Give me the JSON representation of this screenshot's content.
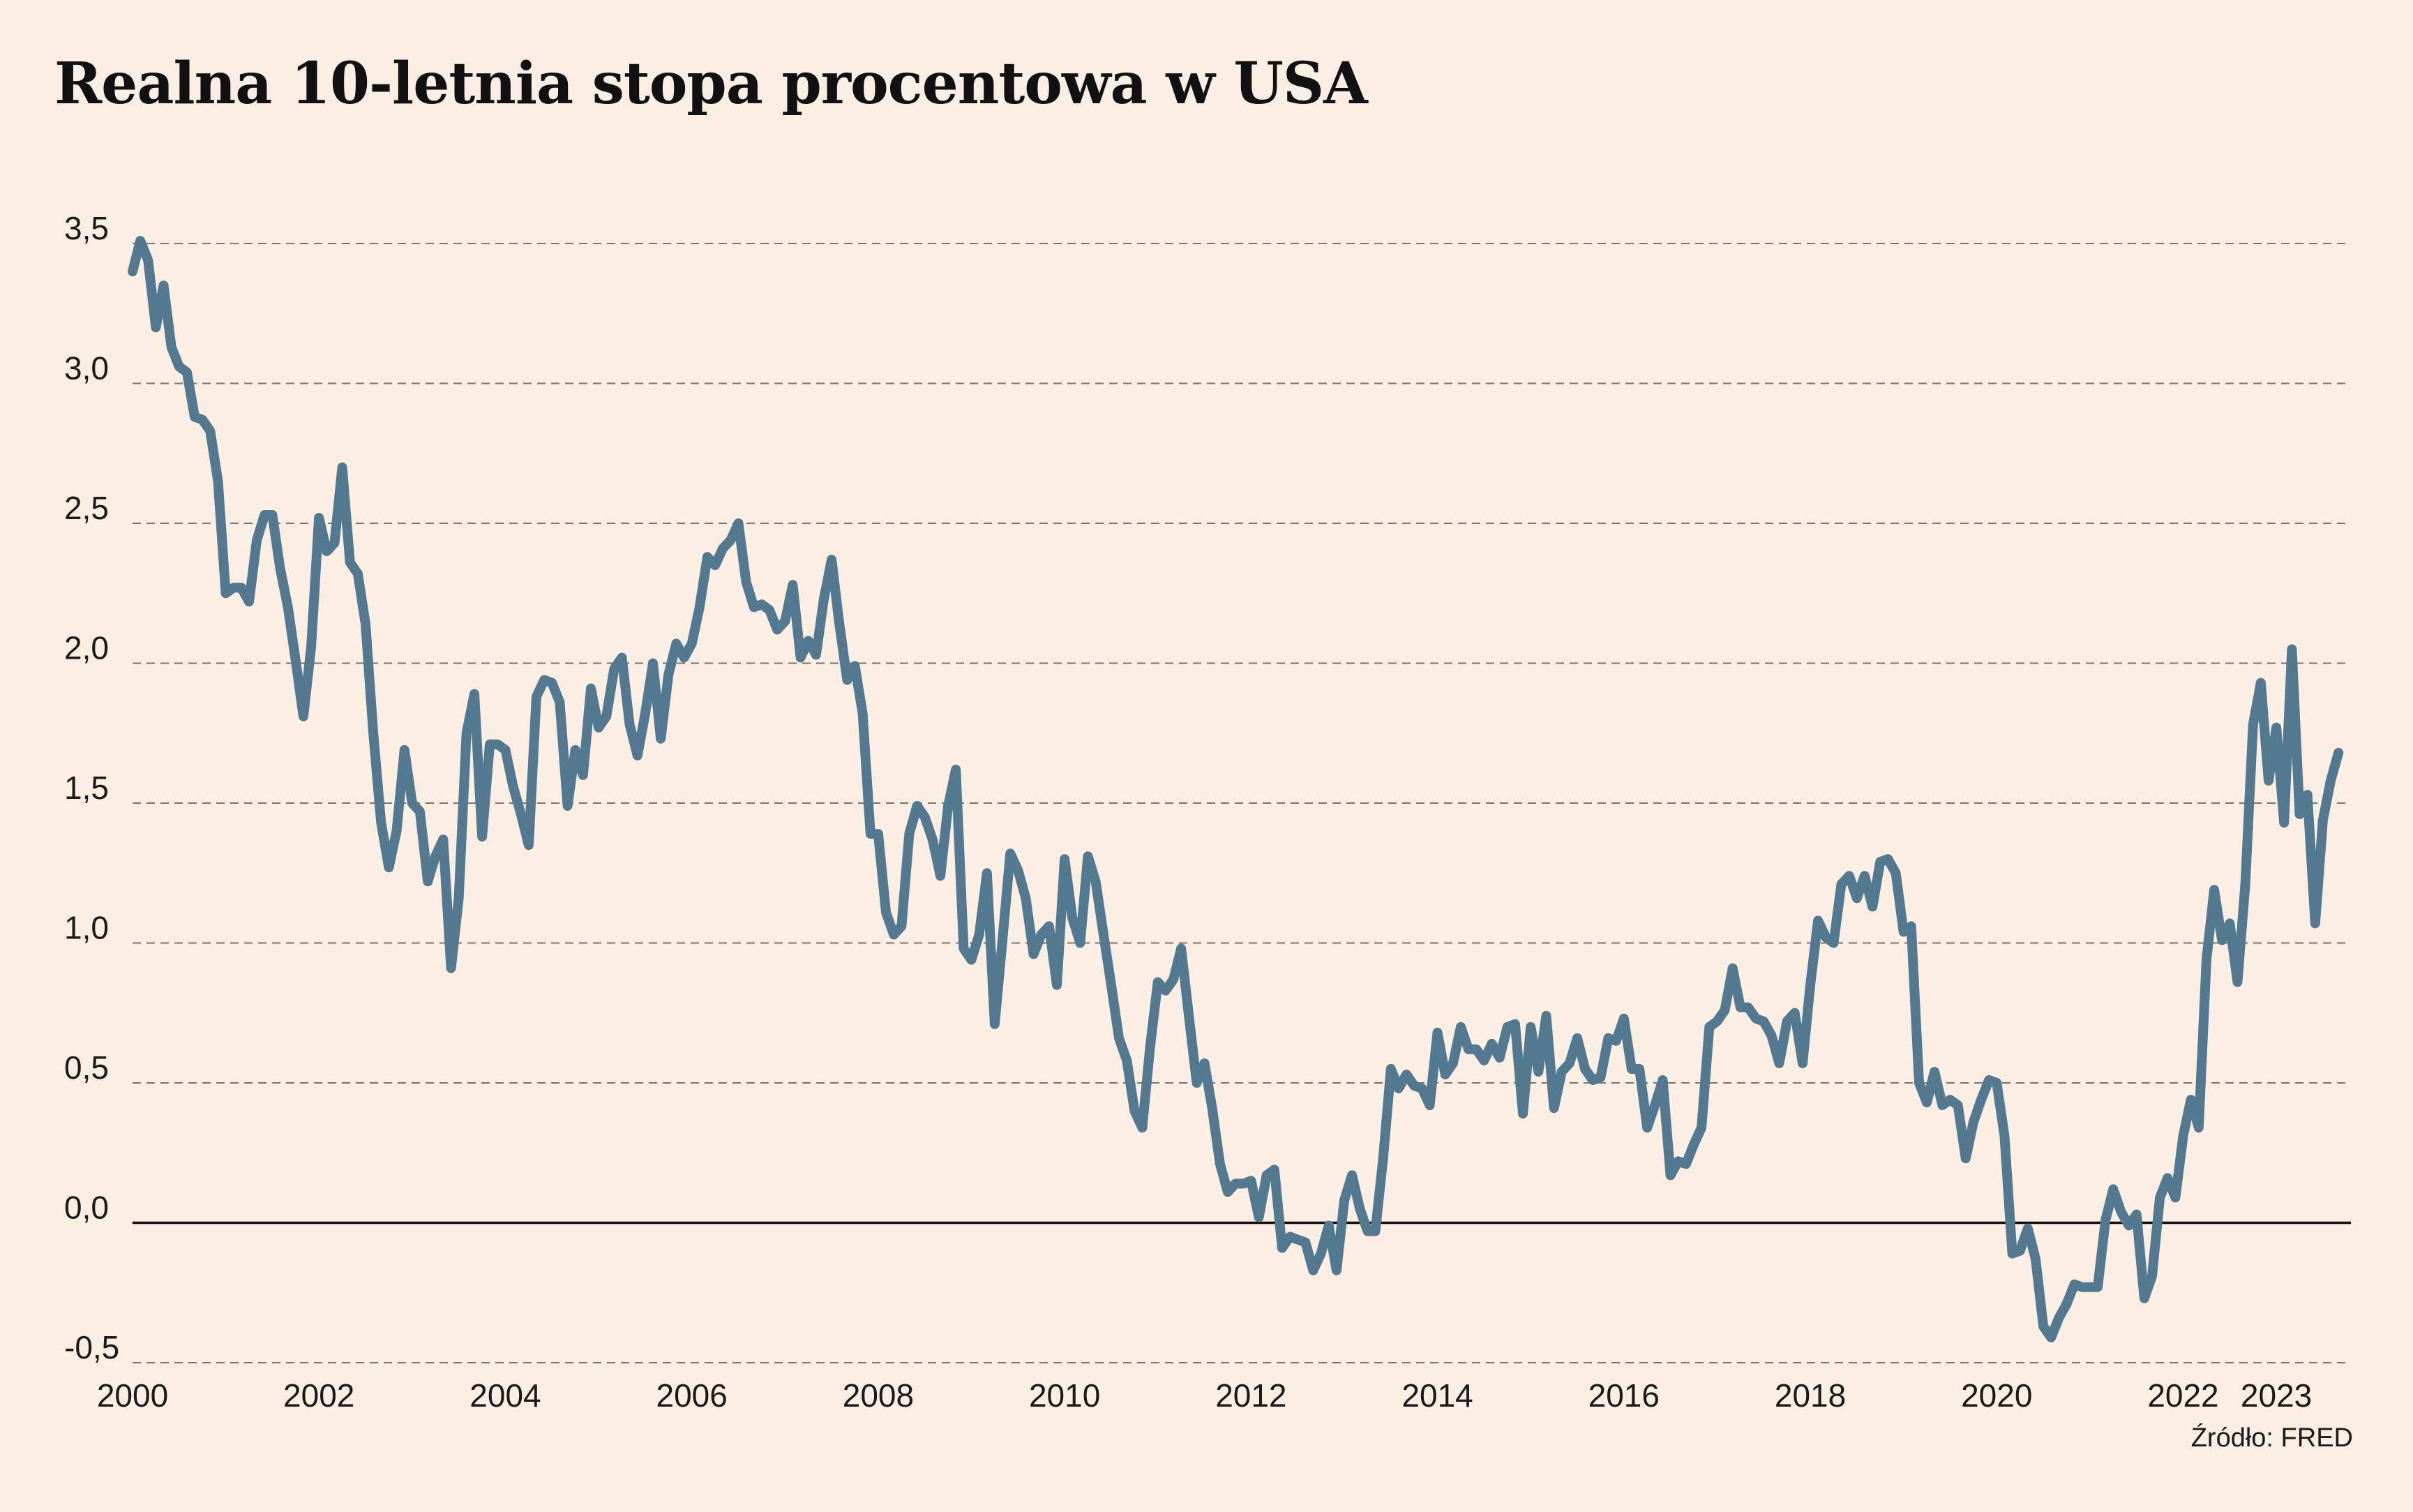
{
  "chart_data": {
    "type": "line",
    "title": "Realna 10-letnia stopa procentowa w USA",
    "xlabel": "",
    "ylabel": "",
    "xlim": [
      2000.0,
      2023.8
    ],
    "ylim": [
      -0.5,
      3.5
    ],
    "y_ticks": [
      {
        "value": 3.5,
        "label": "3,5"
      },
      {
        "value": 3.0,
        "label": "3,0"
      },
      {
        "value": 2.5,
        "label": "2,5"
      },
      {
        "value": 2.0,
        "label": "2,0"
      },
      {
        "value": 1.5,
        "label": "1,5"
      },
      {
        "value": 1.0,
        "label": "1,0"
      },
      {
        "value": 0.5,
        "label": "0,5"
      },
      {
        "value": 0.0,
        "label": "0,0"
      },
      {
        "value": -0.5,
        "label": "-0,5"
      }
    ],
    "x_ticks": [
      {
        "value": 2000,
        "label": "2000"
      },
      {
        "value": 2002,
        "label": "2002"
      },
      {
        "value": 2004,
        "label": "2004"
      },
      {
        "value": 2006,
        "label": "2006"
      },
      {
        "value": 2008,
        "label": "2008"
      },
      {
        "value": 2010,
        "label": "2010"
      },
      {
        "value": 2012,
        "label": "2012"
      },
      {
        "value": 2014,
        "label": "2014"
      },
      {
        "value": 2016,
        "label": "2016"
      },
      {
        "value": 2018,
        "label": "2018"
      },
      {
        "value": 2020,
        "label": "2020"
      },
      {
        "value": 2022,
        "label": "2022"
      },
      {
        "value": 2023,
        "label": "2023"
      }
    ],
    "grid": "horizontal-dashed",
    "legend": "none",
    "series": [
      {
        "color": "#52798f",
        "x": [
          2000.0,
          2000.083,
          2000.167,
          2000.25,
          2000.333,
          2000.417,
          2000.5,
          2000.583,
          2000.667,
          2000.75,
          2000.833,
          2000.917,
          2001.0,
          2001.083,
          2001.167,
          2001.25,
          2001.333,
          2001.417,
          2001.5,
          2001.583,
          2001.667,
          2001.75,
          2001.833,
          2001.917,
          2002.0,
          2002.083,
          2002.167,
          2002.25,
          2002.333,
          2002.417,
          2002.5,
          2002.583,
          2002.667,
          2002.75,
          2002.833,
          2002.917,
          2003.0,
          2003.083,
          2003.167,
          2003.25,
          2003.333,
          2003.417,
          2003.5,
          2003.583,
          2003.667,
          2003.75,
          2003.833,
          2003.917,
          2004.0,
          2004.083,
          2004.167,
          2004.25,
          2004.333,
          2004.417,
          2004.5,
          2004.583,
          2004.667,
          2004.75,
          2004.833,
          2004.917,
          2005.0,
          2005.083,
          2005.167,
          2005.25,
          2005.333,
          2005.417,
          2005.5,
          2005.583,
          2005.667,
          2005.75,
          2005.833,
          2005.917,
          2006.0,
          2006.083,
          2006.167,
          2006.25,
          2006.333,
          2006.417,
          2006.5,
          2006.583,
          2006.667,
          2006.75,
          2006.833,
          2006.917,
          2007.0,
          2007.083,
          2007.167,
          2007.25,
          2007.333,
          2007.417,
          2007.5,
          2007.583,
          2007.667,
          2007.75,
          2007.833,
          2007.917,
          2008.0,
          2008.083,
          2008.167,
          2008.25,
          2008.333,
          2008.417,
          2008.5,
          2008.583,
          2008.667,
          2008.75,
          2008.833,
          2008.917,
          2009.0,
          2009.083,
          2009.167,
          2009.25,
          2009.333,
          2009.417,
          2009.5,
          2009.583,
          2009.667,
          2009.75,
          2009.833,
          2009.917,
          2010.0,
          2010.083,
          2010.167,
          2010.25,
          2010.333,
          2010.417,
          2010.5,
          2010.583,
          2010.667,
          2010.75,
          2010.833,
          2010.917,
          2011.0,
          2011.083,
          2011.167,
          2011.25,
          2011.333,
          2011.417,
          2011.5,
          2011.583,
          2011.667,
          2011.75,
          2011.833,
          2011.917,
          2012.0,
          2012.083,
          2012.167,
          2012.25,
          2012.333,
          2012.417,
          2012.5,
          2012.583,
          2012.667,
          2012.75,
          2012.833,
          2012.917,
          2013.0,
          2013.083,
          2013.167,
          2013.25,
          2013.333,
          2013.417,
          2013.5,
          2013.583,
          2013.667,
          2013.75,
          2013.833,
          2013.917,
          2014.0,
          2014.083,
          2014.167,
          2014.25,
          2014.333,
          2014.417,
          2014.5,
          2014.583,
          2014.667,
          2014.75,
          2014.833,
          2014.917,
          2015.0,
          2015.083,
          2015.167,
          2015.25,
          2015.333,
          2015.417,
          2015.5,
          2015.583,
          2015.667,
          2015.75,
          2015.833,
          2015.917,
          2016.0,
          2016.083,
          2016.167,
          2016.25,
          2016.333,
          2016.417,
          2016.5,
          2016.583,
          2016.667,
          2016.75,
          2016.833,
          2016.917,
          2017.0,
          2017.083,
          2017.167,
          2017.25,
          2017.333,
          2017.417,
          2017.5,
          2017.583,
          2017.667,
          2017.75,
          2017.833,
          2017.917,
          2018.0,
          2018.083,
          2018.167,
          2018.25,
          2018.333,
          2018.417,
          2018.5,
          2018.583,
          2018.667,
          2018.75,
          2018.833,
          2018.917,
          2019.0,
          2019.083,
          2019.167,
          2019.25,
          2019.333,
          2019.417,
          2019.5,
          2019.583,
          2019.667,
          2019.75,
          2019.833,
          2019.917,
          2020.0,
          2020.083,
          2020.167,
          2020.25,
          2020.333,
          2020.417,
          2020.5,
          2020.583,
          2020.667,
          2020.75,
          2020.833,
          2020.917,
          2021.0,
          2021.083,
          2021.167,
          2021.25,
          2021.333,
          2021.417,
          2021.5,
          2021.583,
          2021.667,
          2021.75,
          2021.833,
          2021.917,
          2022.0,
          2022.083,
          2022.167,
          2022.25,
          2022.333,
          2022.417,
          2022.5,
          2022.583,
          2022.667,
          2022.75,
          2022.833,
          2022.917,
          2023.0,
          2023.083,
          2023.167,
          2023.25,
          2023.333,
          2023.417,
          2023.5,
          2023.583,
          2023.667
        ],
        "values": [
          3.4,
          3.51,
          3.44,
          3.2,
          3.35,
          3.13,
          3.06,
          3.04,
          2.88,
          2.87,
          2.83,
          2.65,
          2.25,
          2.27,
          2.27,
          2.22,
          2.44,
          2.53,
          2.53,
          2.34,
          2.2,
          2.01,
          1.81,
          2.06,
          2.52,
          2.4,
          2.43,
          2.7,
          2.36,
          2.32,
          2.14,
          1.75,
          1.43,
          1.27,
          1.4,
          1.69,
          1.5,
          1.47,
          1.22,
          1.31,
          1.37,
          0.91,
          1.16,
          1.75,
          1.89,
          1.38,
          1.71,
          1.71,
          1.69,
          1.56,
          1.46,
          1.35,
          1.88,
          1.94,
          1.93,
          1.86,
          1.49,
          1.69,
          1.6,
          1.91,
          1.77,
          1.81,
          1.98,
          2.02,
          1.78,
          1.67,
          1.82,
          2.0,
          1.73,
          1.96,
          2.07,
          2.02,
          2.07,
          2.2,
          2.38,
          2.35,
          2.41,
          2.44,
          2.5,
          2.29,
          2.2,
          2.21,
          2.19,
          2.12,
          2.15,
          2.28,
          2.02,
          2.08,
          2.03,
          2.23,
          2.37,
          2.14,
          1.94,
          1.99,
          1.82,
          1.39,
          1.39,
          1.11,
          1.03,
          1.06,
          1.39,
          1.49,
          1.45,
          1.37,
          1.24,
          1.49,
          1.62,
          0.98,
          0.94,
          1.03,
          1.25,
          0.71,
          1.01,
          1.32,
          1.26,
          1.16,
          0.96,
          1.03,
          1.06,
          0.85,
          1.3,
          1.09,
          1.0,
          1.31,
          1.22,
          1.03,
          0.85,
          0.66,
          0.58,
          0.4,
          0.34,
          0.63,
          0.86,
          0.83,
          0.87,
          0.98,
          0.74,
          0.5,
          0.57,
          0.41,
          0.21,
          0.11,
          0.14,
          0.14,
          0.15,
          0.02,
          0.17,
          0.19,
          -0.09,
          -0.05,
          -0.06,
          -0.07,
          -0.17,
          -0.11,
          -0.01,
          -0.17,
          0.08,
          0.17,
          0.05,
          -0.03,
          -0.03,
          0.23,
          0.55,
          0.48,
          0.53,
          0.49,
          0.48,
          0.42,
          0.68,
          0.53,
          0.57,
          0.7,
          0.62,
          0.62,
          0.58,
          0.64,
          0.59,
          0.7,
          0.71,
          0.39,
          0.7,
          0.54,
          0.74,
          0.41,
          0.54,
          0.57,
          0.66,
          0.55,
          0.51,
          0.52,
          0.66,
          0.65,
          0.73,
          0.55,
          0.55,
          0.34,
          0.42,
          0.51,
          0.17,
          0.22,
          0.21,
          0.28,
          0.34,
          0.7,
          0.72,
          0.76,
          0.91,
          0.77,
          0.77,
          0.73,
          0.72,
          0.67,
          0.57,
          0.72,
          0.75,
          0.57,
          0.85,
          1.08,
          1.02,
          1.0,
          1.21,
          1.24,
          1.16,
          1.24,
          1.13,
          1.29,
          1.3,
          1.25,
          1.04,
          1.06,
          0.5,
          0.43,
          0.54,
          0.42,
          0.44,
          0.42,
          0.23,
          0.36,
          0.44,
          0.51,
          0.5,
          0.31,
          -0.11,
          -0.1,
          -0.02,
          -0.13,
          -0.37,
          -0.41,
          -0.34,
          -0.29,
          -0.22,
          -0.23,
          -0.23,
          -0.23,
          0.01,
          0.12,
          0.04,
          -0.01,
          0.03,
          -0.27,
          -0.19,
          0.09,
          0.16,
          0.09,
          0.31,
          0.44,
          0.34,
          0.94,
          1.19,
          1.01,
          1.07,
          0.86,
          1.21,
          1.78,
          1.93,
          1.58,
          1.77,
          1.43,
          2.05,
          1.46,
          1.53,
          1.07,
          1.44,
          1.58,
          1.68
        ]
      }
    ],
    "source": "Źródło: FRED"
  }
}
